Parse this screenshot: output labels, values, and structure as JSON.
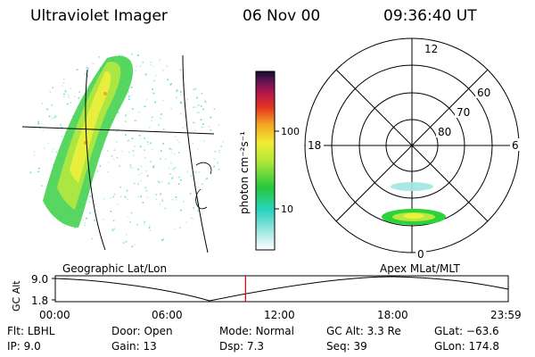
{
  "header": {
    "instrument": "Ultraviolet Imager",
    "date": "06 Nov 00",
    "time": "09:36:40 UT"
  },
  "colorbar": {
    "label": "photon cm⁻²s⁻¹",
    "ticks": [
      "100",
      "10"
    ]
  },
  "polar": {
    "mlt_labels": {
      "top": "12",
      "left": "18",
      "right": "6",
      "bottom": "0"
    },
    "lat_labels": [
      "60",
      "70",
      "80"
    ]
  },
  "timeline": {
    "left_caption": "Geographic Lat/Lon",
    "right_caption": "Apex MLat/MLT",
    "axis_label": "GC Alt",
    "y_top": "9.0",
    "y_bottom": "1.8",
    "times": [
      "00:00",
      "06:00",
      "12:00",
      "18:00",
      "23:59"
    ],
    "current_marker_fraction": 0.42
  },
  "footer": {
    "row1": [
      {
        "label": "Flt:",
        "value": "LBHL"
      },
      {
        "label": "Door:",
        "value": "Open"
      },
      {
        "label": "Mode:",
        "value": "Normal"
      },
      {
        "label": "GC Alt:",
        "value": "3.3 Re"
      },
      {
        "label": "GLat:",
        "value": "−63.6"
      }
    ],
    "row2": [
      {
        "label": "IP:",
        "value": "9.0"
      },
      {
        "label": "Gain:",
        "value": "13"
      },
      {
        "label": "Dsp:",
        "value": "7.3"
      },
      {
        "label": "Seq:",
        "value": "39"
      },
      {
        "label": "GLon:",
        "value": "174.8"
      }
    ]
  },
  "colors": {
    "marker": "#dd0000",
    "accent_green": "#2bd33a",
    "accent_yellow": "#e8ee3c"
  }
}
